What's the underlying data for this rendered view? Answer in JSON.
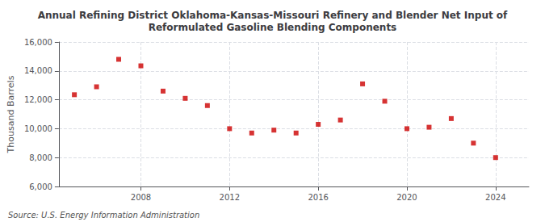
{
  "chart_data": {
    "type": "scatter",
    "title": "Annual Refining District Oklahoma-Kansas-Missouri Refinery and Blender Net Input of\nReformulated Gasoline Blending Components",
    "ylabel": "Thousand Barrels",
    "annotations": [
      "Source: U.S. Energy Information Administration"
    ],
    "x": [
      2005,
      2006,
      2007,
      2008,
      2009,
      2010,
      2011,
      2012,
      2013,
      2014,
      2015,
      2016,
      2017,
      2018,
      2019,
      2020,
      2021,
      2022,
      2023,
      2024
    ],
    "values": [
      12350,
      12900,
      14800,
      14350,
      12600,
      12100,
      11600,
      10000,
      9700,
      9900,
      9700,
      10300,
      10600,
      13100,
      11900,
      10000,
      10100,
      10700,
      9000,
      8000
    ],
    "color": "#cc0000",
    "marker": "square",
    "xlim": [
      2004.3,
      2025.5
    ],
    "xticks": [
      2008,
      2012,
      2016,
      2020,
      2024
    ],
    "ylim": [
      6000,
      16000
    ],
    "yticks": [
      {
        "value": 6000,
        "label": "6,000"
      },
      {
        "value": 8000,
        "label": "8,000"
      },
      {
        "value": 10000,
        "label": "10,000"
      },
      {
        "value": 12000,
        "label": "12,000"
      },
      {
        "value": 14000,
        "label": "14,000"
      },
      {
        "value": 16000,
        "label": "16,000"
      }
    ],
    "grid": true
  }
}
